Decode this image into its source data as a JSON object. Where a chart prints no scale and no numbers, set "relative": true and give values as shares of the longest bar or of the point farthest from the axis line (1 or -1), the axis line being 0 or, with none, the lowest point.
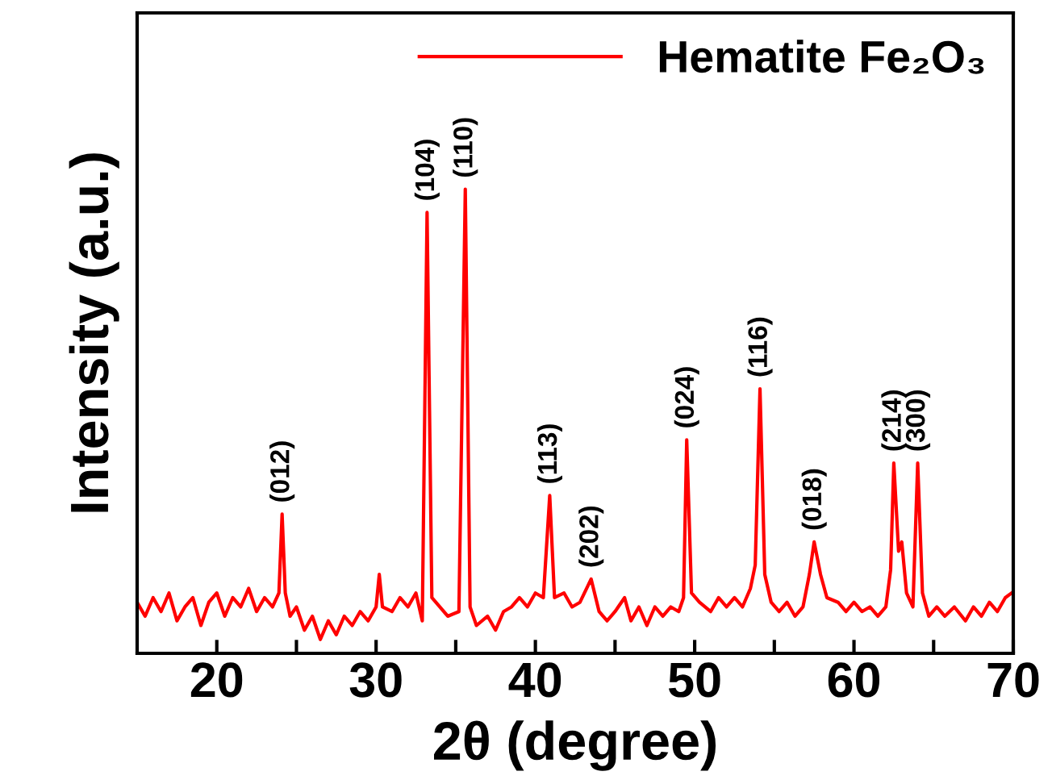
{
  "chart_data": {
    "type": "line",
    "xlabel": "2θ (degree)",
    "ylabel": "Intensity (a.u.)",
    "relative": true,
    "xlim": [
      15,
      70
    ],
    "xticks": [
      20,
      {
        "value": 25,
        "label": null
      },
      30,
      {
        "value": 35,
        "label": null
      },
      40,
      {
        "value": 45,
        "label": null
      },
      50,
      {
        "value": 55,
        "label": null
      },
      60,
      {
        "value": 65,
        "label": null
      },
      70
    ],
    "tick_labels": "x",
    "legend": "top right",
    "grid": false,
    "marker": "none",
    "line_style": "solid",
    "series": [
      {
        "name": "Hematite Fe₂O₃",
        "color": "#ff0000",
        "x": [
          15,
          15.5,
          16,
          16.5,
          17,
          17.5,
          18,
          18.5,
          19,
          19.5,
          20,
          20.5,
          21,
          21.5,
          22,
          22.5,
          23,
          23.5,
          23.9,
          24.1,
          24.3,
          24.6,
          25,
          25.5,
          26,
          26.5,
          27,
          27.5,
          28,
          28.5,
          29,
          29.5,
          30,
          30.2,
          30.4,
          31,
          31.5,
          32,
          32.5,
          32.9,
          33.2,
          33.5,
          34,
          34.5,
          35.2,
          35.6,
          35.9,
          36.3,
          37,
          37.5,
          38,
          38.5,
          39,
          39.5,
          40,
          40.5,
          40.9,
          41.2,
          41.8,
          42.3,
          42.8,
          43.5,
          44,
          44.5,
          45,
          45.6,
          46,
          46.5,
          47,
          47.5,
          48,
          48.5,
          49,
          49.3,
          49.5,
          49.8,
          50.3,
          51,
          51.5,
          52,
          52.5,
          53,
          53.5,
          53.8,
          54.1,
          54.4,
          54.8,
          55.3,
          55.8,
          56.3,
          56.8,
          57.2,
          57.5,
          57.9,
          58.3,
          59,
          59.5,
          60,
          60.5,
          61,
          61.5,
          62,
          62.3,
          62.5,
          62.8,
          63.0,
          63.3,
          63.7,
          64.0,
          64.3,
          64.7,
          65.2,
          65.7,
          66.3,
          67,
          67.5,
          68,
          68.5,
          69,
          69.5,
          69.9
        ],
        "values": [
          0.11,
          0.08,
          0.12,
          0.09,
          0.13,
          0.07,
          0.1,
          0.12,
          0.06,
          0.11,
          0.13,
          0.08,
          0.12,
          0.1,
          0.14,
          0.09,
          0.12,
          0.1,
          0.13,
          0.3,
          0.13,
          0.08,
          0.1,
          0.05,
          0.08,
          0.03,
          0.07,
          0.04,
          0.08,
          0.06,
          0.09,
          0.07,
          0.1,
          0.17,
          0.1,
          0.09,
          0.12,
          0.1,
          0.13,
          0.07,
          0.95,
          0.12,
          0.1,
          0.08,
          0.09,
          1.0,
          0.1,
          0.06,
          0.08,
          0.05,
          0.09,
          0.1,
          0.12,
          0.1,
          0.13,
          0.12,
          0.34,
          0.12,
          0.13,
          0.1,
          0.11,
          0.16,
          0.09,
          0.07,
          0.09,
          0.12,
          0.07,
          0.1,
          0.06,
          0.1,
          0.08,
          0.1,
          0.09,
          0.12,
          0.46,
          0.13,
          0.11,
          0.09,
          0.12,
          0.1,
          0.12,
          0.1,
          0.14,
          0.19,
          0.57,
          0.17,
          0.11,
          0.09,
          0.11,
          0.08,
          0.1,
          0.17,
          0.24,
          0.17,
          0.12,
          0.11,
          0.09,
          0.11,
          0.09,
          0.1,
          0.08,
          0.1,
          0.18,
          0.41,
          0.22,
          0.24,
          0.13,
          0.1,
          0.41,
          0.13,
          0.08,
          0.1,
          0.08,
          0.1,
          0.07,
          0.1,
          0.08,
          0.11,
          0.09,
          0.12,
          0.13
        ]
      }
    ],
    "annotations": [
      {
        "text": "(012)",
        "x": 24.1,
        "y": 0.3
      },
      {
        "text": "(104)",
        "x": 33.2,
        "y": 0.95
      },
      {
        "text": "(110)",
        "x": 35.6,
        "y": 1.0
      },
      {
        "text": "(113)",
        "x": 40.9,
        "y": 0.34
      },
      {
        "text": "(202)",
        "x": 43.5,
        "y": 0.16
      },
      {
        "text": "(024)",
        "x": 49.5,
        "y": 0.46
      },
      {
        "text": "(116)",
        "x": 54.1,
        "y": 0.57
      },
      {
        "text": "(018)",
        "x": 57.5,
        "y": 0.24
      },
      {
        "text": "(214)",
        "x": 62.5,
        "y": 0.41
      },
      {
        "text": "(300)",
        "x": 64.0,
        "y": 0.41
      }
    ]
  }
}
